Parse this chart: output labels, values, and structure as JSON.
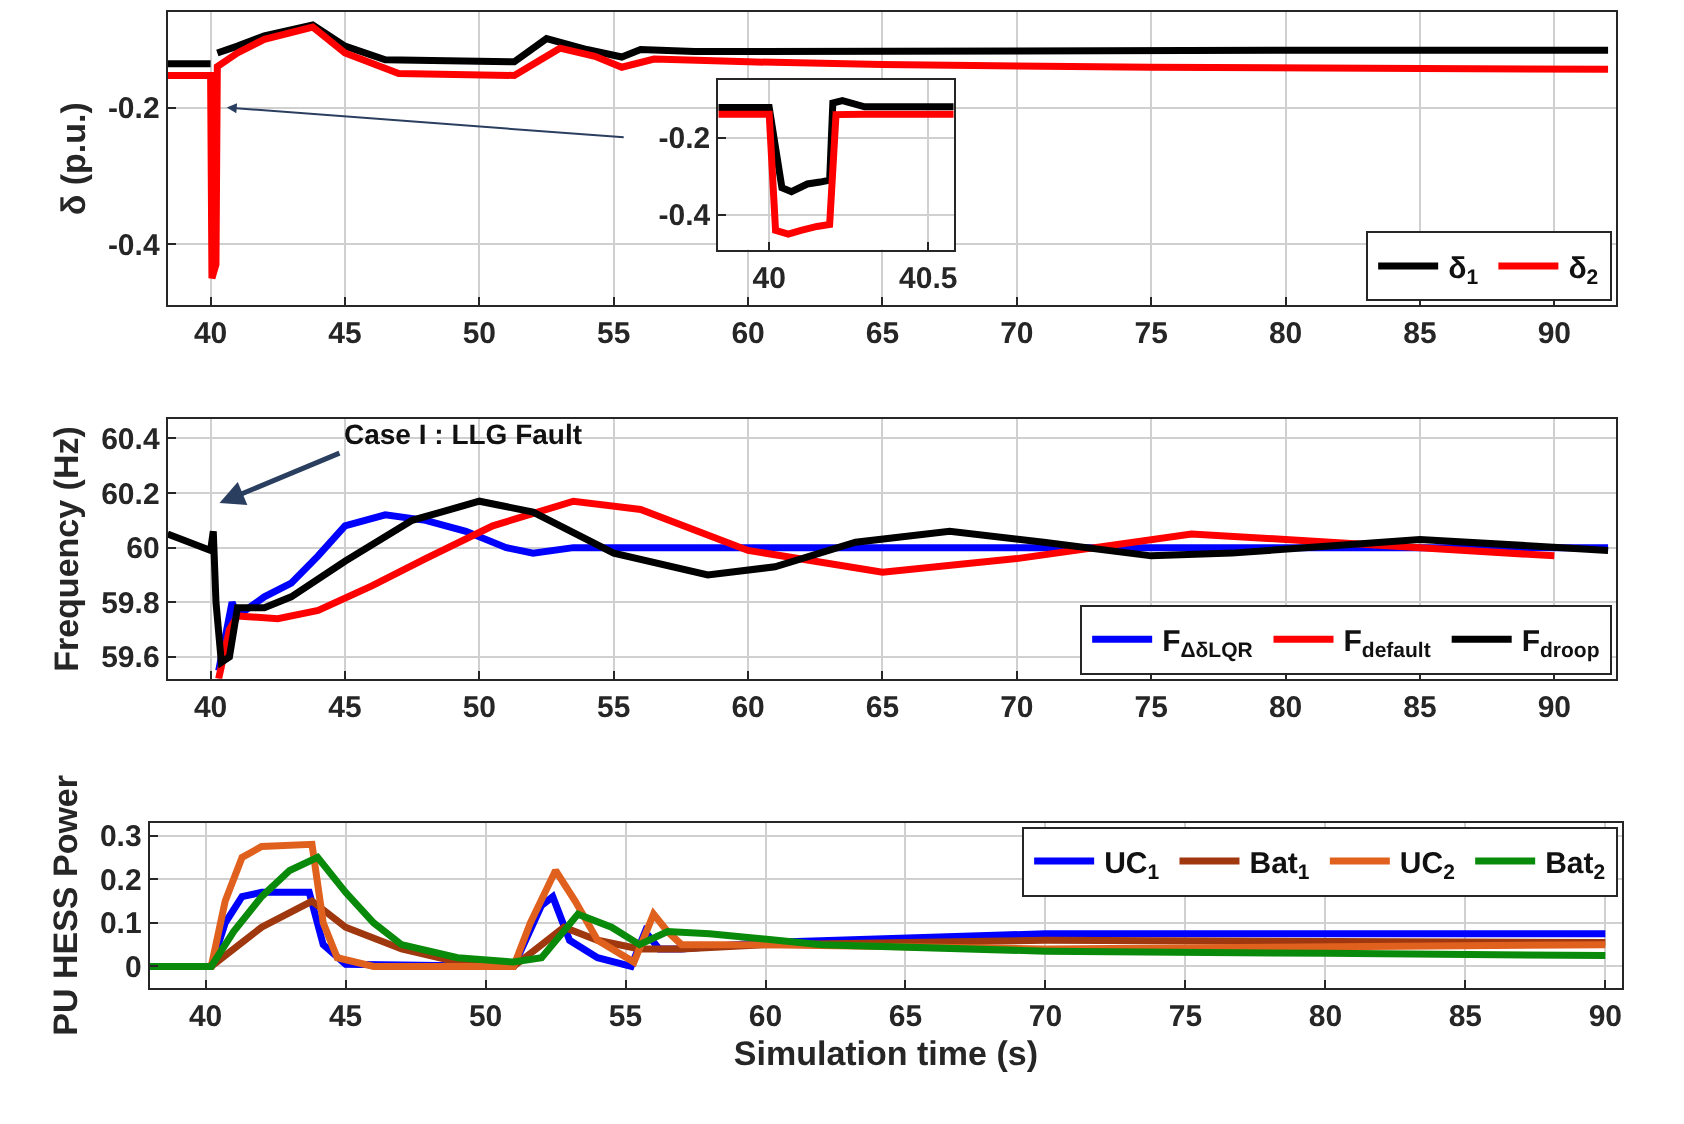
{
  "chart_data": [
    {
      "type": "line",
      "ylabel": "δ (p.u.)",
      "xlim": [
        38.4,
        92.3
      ],
      "ylim": [
        -0.49,
        -0.06
      ],
      "xticks": [
        40,
        45,
        50,
        55,
        60,
        65,
        70,
        75,
        80,
        85,
        90
      ],
      "yticks": [
        -0.4,
        -0.2
      ],
      "grid": true,
      "legend": "bottom right",
      "series": [
        {
          "name": "δ$_{1}$",
          "color": "#000000",
          "x": [
            38.4,
            40,
            40.05,
            40.2,
            40.25,
            41,
            42,
            43.8,
            45,
            46.5,
            51.3,
            52.5,
            54,
            55.3,
            56,
            58,
            60,
            70,
            80,
            92
          ],
          "values": [
            -0.136,
            -0.136,
            null,
            null,
            -0.12,
            -0.11,
            -0.095,
            -0.079,
            -0.11,
            -0.13,
            -0.133,
            -0.099,
            -0.115,
            -0.126,
            -0.115,
            -0.118,
            -0.118,
            -0.117,
            -0.116,
            -0.116
          ]
        },
        {
          "name": "δ$_{2}$",
          "color": "#ff0000",
          "x": [
            38.4,
            40,
            40.05,
            40.2,
            40.25,
            41,
            42,
            43.8,
            45,
            47,
            51.3,
            53,
            54.3,
            55.3,
            56.5,
            60,
            65,
            75,
            85,
            92
          ],
          "values": [
            -0.153,
            -0.153,
            -0.45,
            -0.43,
            -0.14,
            -0.12,
            -0.1,
            -0.082,
            -0.12,
            -0.15,
            -0.153,
            -0.113,
            -0.125,
            -0.141,
            -0.129,
            -0.133,
            -0.137,
            -0.141,
            -0.143,
            -0.144
          ]
        }
      ]
    },
    {
      "type": "line",
      "xlim": [
        39.84,
        40.58
      ],
      "ylim": [
        -0.49,
        -0.05
      ],
      "xticks": [
        40,
        40.5
      ],
      "yticks": [
        -0.4,
        -0.2
      ],
      "grid": true,
      "series": [
        {
          "color": "#000000",
          "x": [
            39.84,
            40.0,
            40.04,
            40.07,
            40.12,
            40.16,
            40.19,
            40.2,
            40.23,
            40.3,
            40.58
          ],
          "values": [
            -0.122,
            -0.122,
            -0.33,
            -0.34,
            -0.32,
            -0.315,
            -0.31,
            -0.11,
            -0.104,
            -0.12,
            -0.12
          ]
        },
        {
          "color": "#ff0000",
          "x": [
            39.84,
            40.0,
            40.02,
            40.06,
            40.1,
            40.15,
            40.19,
            40.21,
            40.3,
            40.58
          ],
          "values": [
            -0.139,
            -0.139,
            -0.44,
            -0.45,
            -0.44,
            -0.43,
            -0.425,
            -0.14,
            -0.139,
            -0.139
          ]
        }
      ]
    },
    {
      "type": "line",
      "ylabel": "Frequency (Hz)",
      "xlim": [
        38.4,
        92.3
      ],
      "ylim": [
        59.52,
        60.47
      ],
      "xticks": [
        40,
        45,
        50,
        55,
        60,
        65,
        70,
        75,
        80,
        85,
        90
      ],
      "yticks": [
        59.6,
        59.8,
        60,
        60.2,
        60.4
      ],
      "grid": true,
      "legend": "bottom right",
      "annotations": [
        "Case I : LLG Fault"
      ],
      "series": [
        {
          "name": "F$_{ΔδLQR}$",
          "color": "#0000ff",
          "x": [
            40.3,
            40.8,
            41,
            42,
            43,
            44,
            45,
            46.5,
            48,
            49.5,
            51,
            52,
            53.5,
            55,
            60,
            70,
            80,
            92
          ],
          "values": [
            59.55,
            59.8,
            59.75,
            59.82,
            59.87,
            59.97,
            60.08,
            60.12,
            60.1,
            60.06,
            60.0,
            59.98,
            60.0,
            60.0,
            60.0,
            60.0,
            60.0,
            60.0
          ]
        },
        {
          "name": "F$_{default}$",
          "color": "#ff0000",
          "x": [
            40.3,
            40.7,
            41,
            42.5,
            44,
            46,
            48,
            50.5,
            53.5,
            56,
            60,
            65,
            70,
            76.5,
            80,
            85,
            90
          ],
          "values": [
            59.52,
            59.7,
            59.75,
            59.74,
            59.77,
            59.86,
            59.96,
            60.08,
            60.17,
            60.14,
            59.99,
            59.91,
            59.96,
            60.05,
            60.03,
            60.0,
            59.97
          ]
        },
        {
          "name": "F$_{droop}$",
          "color": "#000000",
          "x": [
            38.4,
            40,
            40.1,
            40.2,
            40.4,
            40.7,
            41,
            42,
            43,
            45,
            47.5,
            50,
            52,
            55,
            58.5,
            61,
            64,
            67.5,
            71,
            75,
            78,
            85,
            92
          ],
          "values": [
            60.05,
            59.99,
            60.06,
            59.8,
            59.58,
            59.6,
            59.78,
            59.78,
            59.82,
            59.95,
            60.1,
            60.17,
            60.13,
            59.98,
            59.9,
            59.93,
            60.02,
            60.06,
            60.02,
            59.97,
            59.98,
            60.03,
            59.99
          ]
        }
      ]
    },
    {
      "type": "line",
      "ylabel": "PU HESS Power",
      "xlabel": "Simulation time (s)",
      "xlim": [
        38,
        90.6
      ],
      "ylim": [
        -0.05,
        0.33
      ],
      "xticks": [
        40,
        45,
        50,
        55,
        60,
        65,
        70,
        75,
        80,
        85,
        90
      ],
      "yticks": [
        0,
        0.1,
        0.2,
        0.3
      ],
      "grid": true,
      "legend": "top right",
      "series": [
        {
          "name": "UC$_{1}$",
          "color": "#0000ff",
          "x": [
            38,
            40.2,
            40.7,
            41.3,
            42,
            43.7,
            44.2,
            45,
            51,
            51.5,
            52,
            52.4,
            53,
            54,
            55.2,
            55.7,
            56.2,
            57,
            60,
            70,
            90
          ],
          "values": [
            0,
            0,
            0.1,
            0.16,
            0.17,
            0.17,
            0.05,
            0.005,
            0,
            0.07,
            0.14,
            0.16,
            0.06,
            0.02,
            0,
            0.08,
            0.04,
            0.04,
            0.055,
            0.075,
            0.075
          ]
        },
        {
          "name": "Bat$_{1}$",
          "color": "#a0380f",
          "x": [
            38,
            40.2,
            41,
            42,
            43.8,
            45,
            47,
            49,
            51,
            52,
            52.8,
            54,
            55.5,
            57,
            60,
            70,
            90
          ],
          "values": [
            0,
            0,
            0.04,
            0.09,
            0.15,
            0.09,
            0.04,
            0.01,
            0,
            0.05,
            0.09,
            0.06,
            0.04,
            0.04,
            0.05,
            0.06,
            0.055
          ]
        },
        {
          "name": "UC$_{2}$",
          "color": "#e0601e",
          "x": [
            38,
            40.2,
            40.7,
            41.3,
            42,
            43.8,
            44.2,
            44.7,
            46,
            51,
            51.6,
            52.5,
            53.2,
            54,
            55.3,
            56,
            56.5,
            57,
            60,
            65,
            70,
            90
          ],
          "values": [
            0,
            0,
            0.15,
            0.25,
            0.275,
            0.28,
            0.1,
            0.02,
            0,
            0,
            0.1,
            0.22,
            0.15,
            0.06,
            0.01,
            0.12,
            0.08,
            0.05,
            0.05,
            0.045,
            0.04,
            0.05
          ]
        },
        {
          "name": "Bat$_{2}$",
          "color": "#0a8a0a",
          "x": [
            38,
            40.2,
            41,
            42,
            43,
            44,
            45,
            46,
            47,
            49,
            51,
            52,
            53.3,
            54.5,
            55.5,
            56.5,
            58,
            62,
            70,
            80,
            90
          ],
          "values": [
            0,
            0,
            0.08,
            0.16,
            0.22,
            0.25,
            0.17,
            0.1,
            0.05,
            0.02,
            0.01,
            0.02,
            0.12,
            0.09,
            0.05,
            0.08,
            0.075,
            0.05,
            0.035,
            0.03,
            0.025
          ]
        }
      ]
    }
  ]
}
